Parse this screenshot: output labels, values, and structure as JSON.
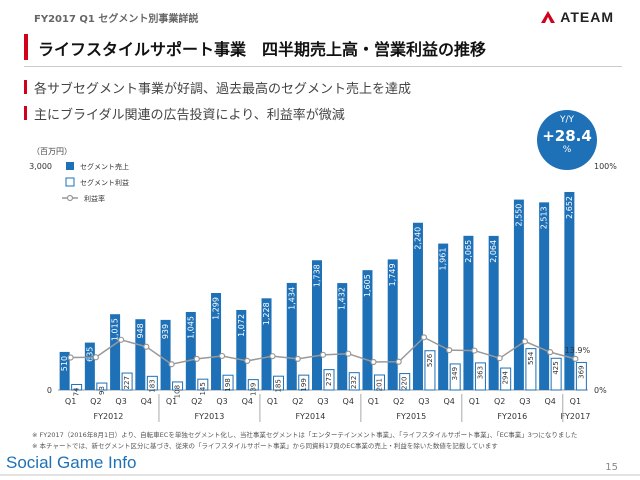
{
  "header": {
    "label": "FY2017 Q1 セグメント別事業詳説",
    "logo_text": "ATEAM",
    "title": "ライフスタイルサポート事業　四半期売上高・営業利益の推移"
  },
  "bullets": [
    "各サブセグメント事業が好調、過去最高のセグメント売上を達成",
    "主にブライダル関連の広告投資により、利益率が微減"
  ],
  "yoy": {
    "label": "Y/Y",
    "value": "+28.4",
    "unit": "%"
  },
  "chart_data": {
    "type": "bar",
    "unit_label": "（百万円）",
    "ylim": [
      0,
      3000
    ],
    "y_ticks": [
      "0",
      "3,000"
    ],
    "y2_ticks": [
      "0%",
      "100%"
    ],
    "legend": {
      "placement": "top-left",
      "entries": [
        "セグメント売上",
        "セグメント利益",
        "利益率"
      ]
    },
    "categories": [
      "Q1",
      "Q2",
      "Q3",
      "Q4",
      "Q1",
      "Q2",
      "Q3",
      "Q4",
      "Q1",
      "Q2",
      "Q3",
      "Q4",
      "Q1",
      "Q2",
      "Q3",
      "Q4",
      "Q1",
      "Q2",
      "Q3",
      "Q4",
      "Q1"
    ],
    "fiscal_years": [
      {
        "label": "FY2012",
        "start": 0,
        "end": 3
      },
      {
        "label": "FY2013",
        "start": 4,
        "end": 7
      },
      {
        "label": "FY2014",
        "start": 8,
        "end": 11
      },
      {
        "label": "FY2015",
        "start": 12,
        "end": 15
      },
      {
        "label": "FY2016",
        "start": 16,
        "end": 19
      },
      {
        "label": "FY2017",
        "start": 20,
        "end": 20
      }
    ],
    "series": [
      {
        "name": "セグメント売上",
        "color": "#1e70b7",
        "values": [
          510,
          635,
          1015,
          948,
          939,
          1045,
          1299,
          1072,
          1228,
          1434,
          1738,
          1432,
          1605,
          1749,
          2240,
          1961,
          2065,
          2064,
          2550,
          2513,
          2652
        ],
        "labels": [
          "510",
          "635",
          "1,015",
          "948",
          "939",
          "1,045",
          "1,299",
          "1,072",
          "1,228",
          "1,434",
          "1,738",
          "1,432",
          "1,605",
          "1,749",
          "2,240",
          "1,961",
          "2,065",
          "2,064",
          "2,550",
          "2,513",
          "2,652"
        ]
      },
      {
        "name": "セグメント利益",
        "color": "#ffffff",
        "values": [
          74,
          93,
          227,
          183,
          108,
          145,
          198,
          139,
          185,
          199,
          273,
          232,
          201,
          220,
          526,
          349,
          363,
          294,
          554,
          425,
          369
        ],
        "labels": [
          "74",
          "93",
          "227",
          "183",
          "108",
          "145",
          "198",
          "139",
          "185",
          "199",
          "273",
          "232",
          "201",
          "220",
          "526",
          "349",
          "363",
          "294",
          "554",
          "425",
          "369"
        ]
      },
      {
        "name": "利益率",
        "color": "#999999",
        "values": [
          14.5,
          14.6,
          22.4,
          19.3,
          11.5,
          13.9,
          15.2,
          13.0,
          15.1,
          13.9,
          15.7,
          16.2,
          12.5,
          12.6,
          23.5,
          17.8,
          17.6,
          14.2,
          21.7,
          16.9,
          13.9
        ]
      }
    ],
    "annotation": "13.9%"
  },
  "footnotes": [
    "※ FY2017（2016年8月1日）より、自転車ECを単独セグメント化し、当社事業セグメントは「エンターテインメント事業」、「ライフスタイルサポート事業」、「EC事業」3つになりました",
    "※ 本チャートでは、新セグメント区分に基づき、従来の「ライフスタイルサポート事業」から同資料17頁のEC事業の売上・利益を除いた数値を記載しています"
  ],
  "footer": {
    "brand": "Social Game Info",
    "page": "15"
  }
}
